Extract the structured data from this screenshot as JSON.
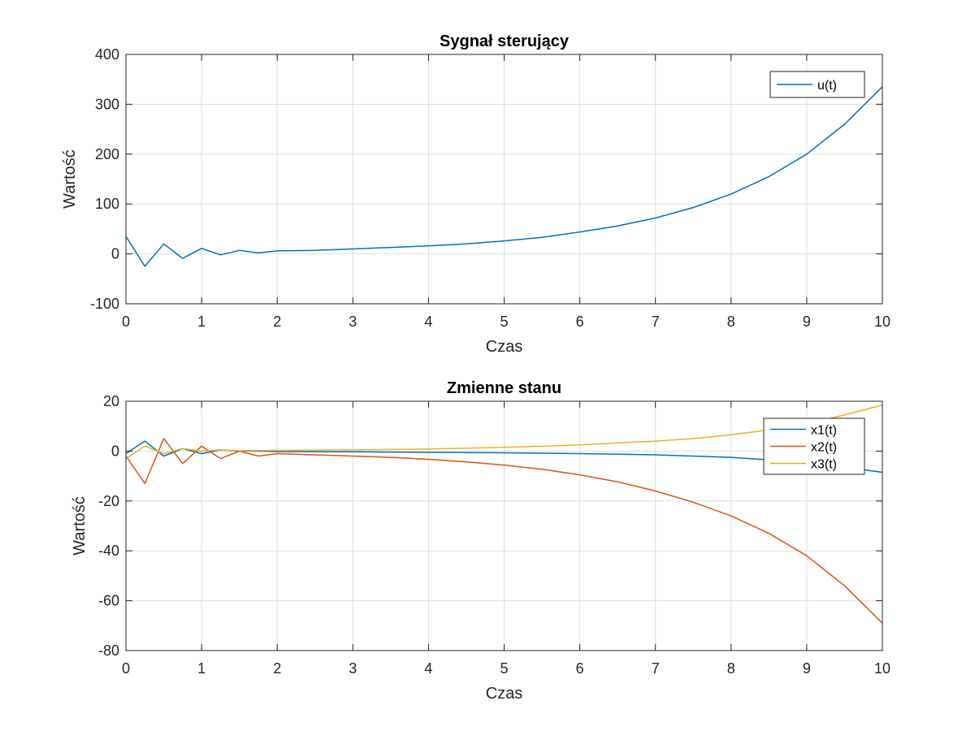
{
  "chart_data": [
    {
      "type": "line",
      "title": "Sygnał sterujący",
      "xlabel": "Czas",
      "ylabel": "Wartość",
      "xlim": [
        0,
        10
      ],
      "ylim": [
        -100,
        400
      ],
      "xticks": [
        "0",
        "1",
        "2",
        "3",
        "4",
        "5",
        "6",
        "7",
        "8",
        "9",
        "10"
      ],
      "yticks": [
        "-100",
        "0",
        "100",
        "200",
        "300",
        "400"
      ],
      "grid": true,
      "legend_position": "top-right",
      "series": [
        {
          "name": "u(t)",
          "color": "#0072BD",
          "x": [
            0,
            0.25,
            0.5,
            0.75,
            1,
            1.25,
            1.5,
            1.75,
            2,
            2.5,
            3,
            3.5,
            4,
            4.5,
            5,
            5.5,
            6,
            6.5,
            7,
            7.5,
            8,
            8.5,
            9,
            9.5,
            10
          ],
          "values": [
            35,
            -25,
            20,
            -9,
            11,
            -2,
            7,
            2,
            6,
            7,
            10,
            13,
            16,
            20,
            26,
            33,
            44,
            56,
            72,
            93,
            120,
            155,
            200,
            260,
            335
          ]
        }
      ]
    },
    {
      "type": "line",
      "title": "Zmienne stanu",
      "xlabel": "Czas",
      "ylabel": "Wartość",
      "xlim": [
        0,
        10
      ],
      "ylim": [
        -80,
        20
      ],
      "xticks": [
        "0",
        "1",
        "2",
        "3",
        "4",
        "5",
        "6",
        "7",
        "8",
        "9",
        "10"
      ],
      "yticks": [
        "-80",
        "-60",
        "-40",
        "-20",
        "0",
        "20"
      ],
      "grid": true,
      "legend_position": "top-right",
      "series": [
        {
          "name": "x1(t)",
          "color": "#0072BD",
          "x": [
            0,
            0.25,
            0.5,
            0.75,
            1,
            1.25,
            1.5,
            1.75,
            2,
            3,
            4,
            5,
            6,
            7,
            8,
            8.5,
            9,
            9.5,
            10
          ],
          "values": [
            -1,
            4,
            -2,
            1,
            -1,
            0.5,
            0,
            0,
            -0.2,
            -0.3,
            -0.5,
            -0.7,
            -1,
            -1.5,
            -2.5,
            -3.5,
            -4.8,
            -6.5,
            -8.5
          ]
        },
        {
          "name": "x2(t)",
          "color": "#D95319",
          "x": [
            0,
            0.25,
            0.5,
            0.75,
            1,
            1.25,
            1.5,
            1.75,
            2,
            2.5,
            3,
            3.5,
            4,
            4.5,
            5,
            5.5,
            6,
            6.5,
            7,
            7.5,
            8,
            8.5,
            9,
            9.5,
            10
          ],
          "values": [
            -2,
            -13,
            5,
            -5,
            2,
            -3,
            0,
            -2,
            -1,
            -1.5,
            -2,
            -2.5,
            -3.3,
            -4.3,
            -5.6,
            -7.3,
            -9.5,
            -12.3,
            -16,
            -20.5,
            -26,
            -33,
            -42,
            -54,
            -69
          ]
        },
        {
          "name": "x3(t)",
          "color": "#EDB120",
          "x": [
            0,
            0.25,
            0.5,
            0.75,
            1,
            1.25,
            1.5,
            1.75,
            2,
            3,
            4,
            5,
            6,
            7,
            7.5,
            8,
            8.5,
            9,
            9.5,
            10
          ],
          "values": [
            -3,
            2,
            -1,
            1,
            0,
            0.5,
            0.2,
            0.2,
            0.3,
            0.5,
            0.8,
            1.5,
            2.5,
            4,
            5,
            6.5,
            8.5,
            11,
            14.5,
            18.5
          ]
        }
      ]
    }
  ]
}
